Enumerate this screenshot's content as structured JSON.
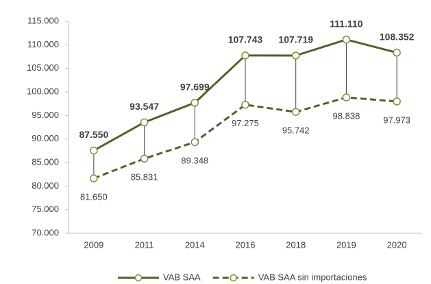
{
  "chart_data": {
    "type": "line",
    "categories": [
      "2009",
      "2011",
      "2014",
      "2016",
      "2018",
      "2019",
      "2020"
    ],
    "series": [
      {
        "name": "VAB SAA",
        "color": "#4f6228",
        "line_style": "solid",
        "values": [
          87550,
          93547,
          97699,
          107743,
          107719,
          111110,
          108352
        ],
        "value_labels": [
          "87.550",
          "93.547",
          "97.699",
          "107.743",
          "107.719",
          "111.110",
          "108.352"
        ]
      },
      {
        "name": "VAB SAA sin importaciones",
        "color": "#4f6228",
        "line_style": "dashed",
        "values": [
          81650,
          85831,
          89348,
          97275,
          95742,
          98838,
          97973
        ],
        "value_labels": [
          "81.650",
          "85.831",
          "89.348",
          "97.275",
          "95.742",
          "98.838",
          "97.973"
        ]
      }
    ],
    "ylim": [
      70000,
      115000
    ],
    "yticks": [
      {
        "value": 70000,
        "label": "70.000"
      },
      {
        "value": 75000,
        "label": "75.000"
      },
      {
        "value": 80000,
        "label": "80.000"
      },
      {
        "value": 85000,
        "label": "85.000"
      },
      {
        "value": 90000,
        "label": "90.000"
      },
      {
        "value": 95000,
        "label": "95.000"
      },
      {
        "value": 100000,
        "label": "100.000"
      },
      {
        "value": 105000,
        "label": "105.000"
      },
      {
        "value": 110000,
        "label": "110.000"
      },
      {
        "value": 115000,
        "label": "115.000"
      }
    ],
    "grid": false,
    "legend": "bottom"
  }
}
